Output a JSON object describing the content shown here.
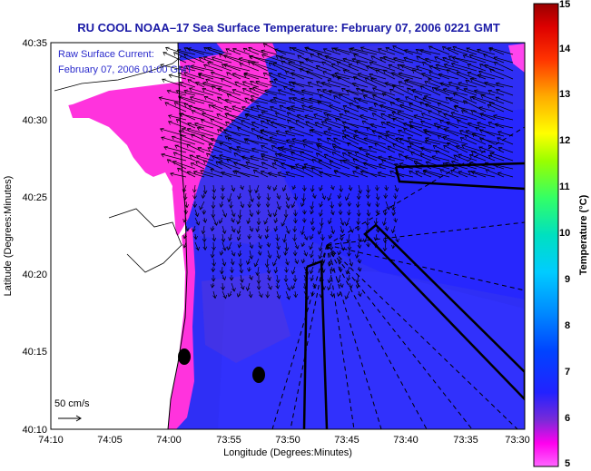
{
  "title": "RU COOL  NOAA–17  Sea Surface Temperature:  February 07, 2006 0221 GMT",
  "annotation": {
    "line1": "Raw Surface Current:",
    "line2": "February 07, 2006 01:00 GMT"
  },
  "scale_bar": "50 cm/s",
  "map": {
    "x_axis_label": "Longitude (Degrees:Minutes)",
    "y_axis_label": "Latitude (Degrees:Minutes)",
    "x_ticks": [
      "74:10",
      "74:05",
      "74:00",
      "73:55",
      "73:50",
      "73:45",
      "73:40",
      "73:35",
      "73:30"
    ],
    "y_ticks": [
      "40:35",
      "40:30",
      "40:25",
      "40:20",
      "40:15",
      "40:10"
    ],
    "colors": {
      "cold_magenta": "#ff33dd",
      "deep_blue": "#1a1aff",
      "mid_blue": "#3b3bff",
      "land": "#ffffff",
      "arrows": "#000000"
    }
  },
  "colorbar": {
    "label": "Temperature (°C)",
    "ticks": [
      "5",
      "6",
      "7",
      "8",
      "9",
      "10",
      "11",
      "12",
      "13",
      "14",
      "15"
    ],
    "range": [
      5,
      15
    ]
  }
}
